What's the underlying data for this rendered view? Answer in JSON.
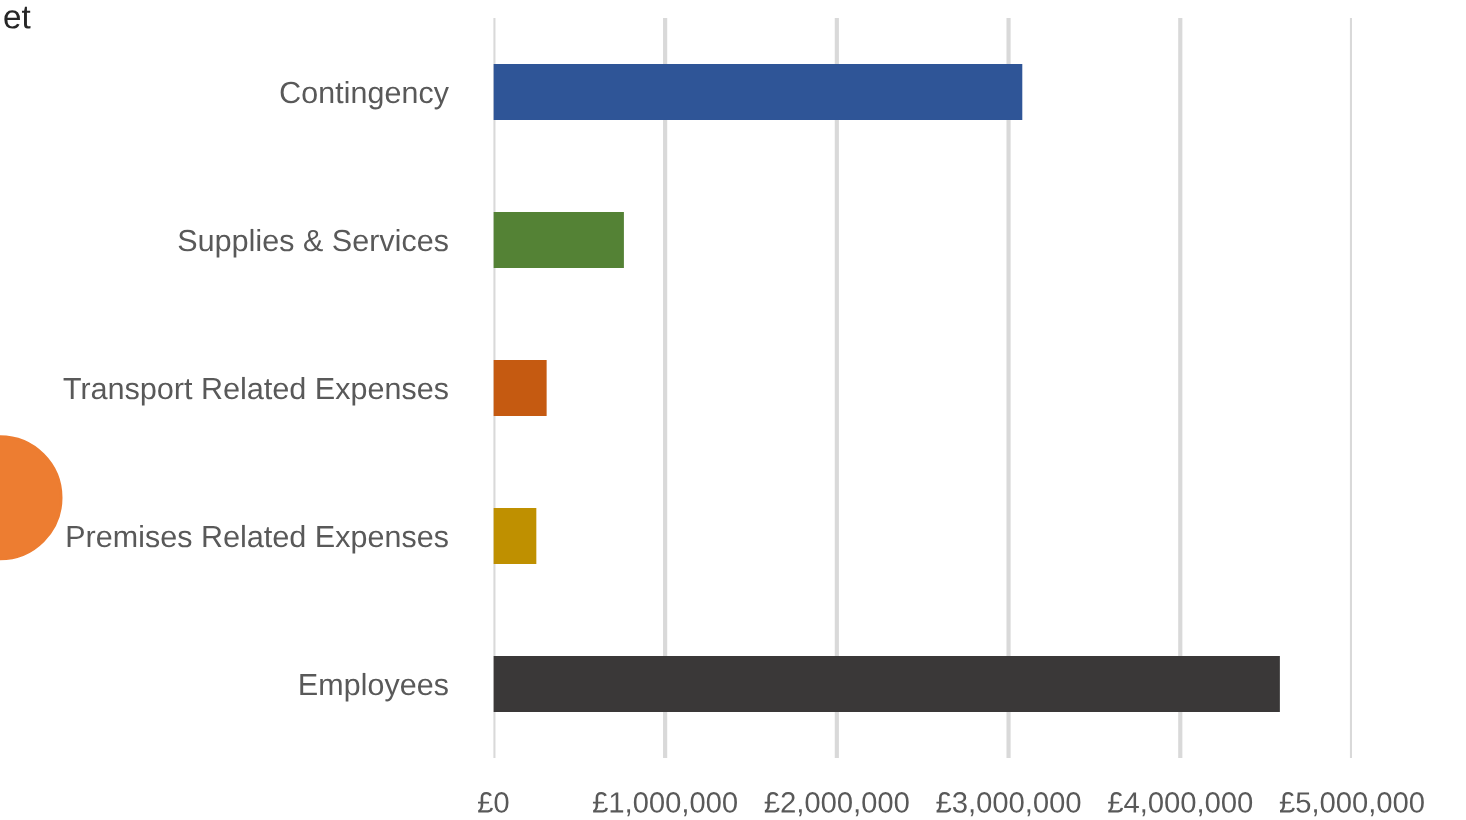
{
  "chart_data": {
    "type": "bar",
    "orientation": "horizontal",
    "title": "et",
    "categories": [
      "Contingency",
      "Supplies & Services",
      "Transport Related Expenses",
      "Premises Related Expenses",
      "Employees"
    ],
    "values": [
      3080000,
      760000,
      310000,
      250000,
      4580000
    ],
    "colors": [
      "#2f5597",
      "#548235",
      "#c55a11",
      "#bf9000",
      "#3a3838"
    ],
    "xlim": [
      0,
      5000000
    ],
    "xticks": [
      {
        "value": 0,
        "label": "£0"
      },
      {
        "value": 1000000,
        "label": "£1,000,000"
      },
      {
        "value": 2000000,
        "label": "£2,000,000"
      },
      {
        "value": 3000000,
        "label": "£3,000,000"
      },
      {
        "value": 4000000,
        "label": "£4,000,000"
      },
      {
        "value": 5000000,
        "label": "£5,000,000"
      }
    ],
    "grid": "x"
  }
}
